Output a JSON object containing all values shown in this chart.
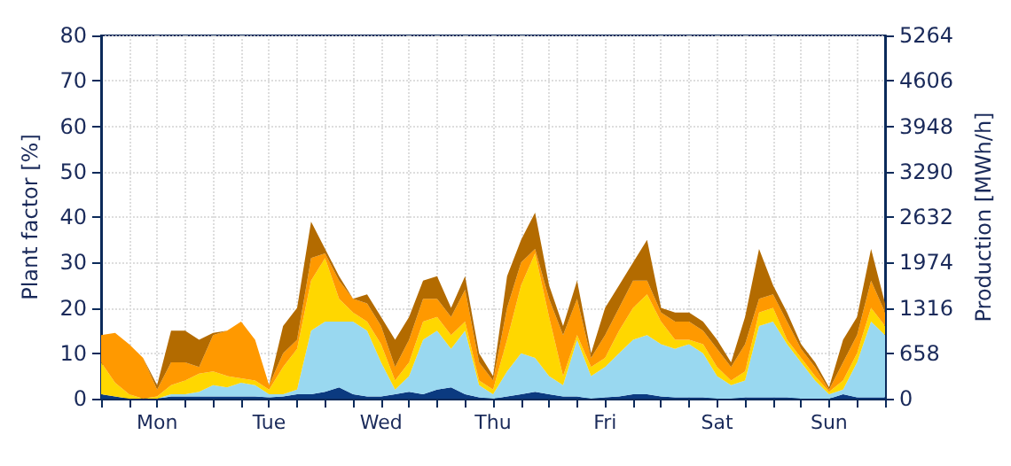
{
  "chart_data": {
    "type": "area",
    "stacked": true,
    "ylabel": "Plant factor [%]",
    "y2label": "Production [MWh/h]",
    "categories": [
      null,
      null,
      null,
      null,
      "Mon",
      null,
      null,
      null,
      null,
      null,
      null,
      null,
      "Tue",
      null,
      null,
      null,
      null,
      null,
      null,
      null,
      "Wed",
      null,
      null,
      null,
      null,
      null,
      null,
      null,
      "Thu",
      null,
      null,
      null,
      null,
      null,
      null,
      null,
      "Fri",
      null,
      null,
      null,
      null,
      null,
      null,
      null,
      "Sat",
      null,
      null,
      null,
      null,
      null,
      null,
      null,
      "Sun",
      null,
      null,
      null,
      null
    ],
    "series": [
      {
        "color": "#0b3a80",
        "values": [
          1,
          0.5,
          0,
          0,
          0,
          0.5,
          0.5,
          0.5,
          0.5,
          0.5,
          0.5,
          0.5,
          0.3,
          0.5,
          1,
          1,
          1.5,
          2.5,
          1,
          0.5,
          0.5,
          1,
          1.5,
          1,
          2,
          2.5,
          1,
          0.3,
          0,
          0.5,
          1,
          1.5,
          1,
          0.5,
          0.5,
          0,
          0.3,
          0.5,
          1,
          1,
          0.5,
          0.3,
          0.3,
          0.3,
          0,
          0,
          0.3,
          0.3,
          0.3,
          0.3,
          0,
          0,
          0,
          1,
          0.3,
          0.3,
          0.3
        ]
      },
      {
        "color": "#99d8f0",
        "values": [
          0,
          0,
          0,
          0,
          0,
          0.5,
          0.5,
          1,
          2.5,
          2,
          3,
          2.5,
          0.7,
          0.5,
          1,
          14,
          15.5,
          14.5,
          16,
          14.5,
          7.5,
          1,
          3.5,
          12,
          13,
          8.5,
          14,
          2.7,
          1,
          5.5,
          9,
          7.5,
          4,
          2.5,
          12.5,
          5,
          6.7,
          9.5,
          12,
          13,
          11.5,
          10.7,
          11.7,
          9.7,
          5,
          3,
          3.7,
          15.7,
          16.7,
          11.7,
          8,
          4,
          1,
          1,
          7.7,
          16.7,
          13.7
        ]
      },
      {
        "color": "#ffd700",
        "values": [
          7,
          3,
          1,
          0,
          0.5,
          2,
          3,
          4,
          3,
          2.5,
          1,
          1,
          1,
          6,
          9,
          11,
          14,
          5,
          2,
          2,
          4,
          2,
          3,
          4,
          3,
          3,
          2,
          1,
          1,
          7,
          15,
          23,
          13,
          2,
          1,
          2,
          2,
          5,
          7,
          9,
          5,
          2,
          1,
          2,
          2,
          1,
          2,
          3,
          3,
          1,
          1,
          1,
          0.5,
          2,
          2,
          3,
          2
        ]
      },
      {
        "color": "#ff9900",
        "values": [
          6,
          11,
          11,
          9,
          1.5,
          5,
          4,
          1.5,
          8,
          10,
          12.5,
          9,
          1,
          3,
          2,
          5,
          1,
          4,
          3,
          4,
          4,
          3,
          5,
          5,
          4,
          4,
          7,
          4,
          2,
          7,
          5,
          1,
          4,
          9,
          8,
          2,
          5,
          5,
          6,
          3,
          2,
          4,
          4,
          3,
          4,
          3,
          6,
          3,
          3,
          4,
          2,
          2,
          0.5,
          4,
          4,
          6,
          3
        ]
      },
      {
        "color": "#b36b00",
        "values": [
          0,
          0,
          0,
          0,
          1,
          7,
          7,
          6,
          0.5,
          0,
          0,
          0,
          0,
          6,
          7,
          8,
          1,
          1,
          0,
          2,
          2,
          6,
          5,
          4,
          5,
          2,
          3,
          2,
          1,
          7,
          5,
          8,
          3,
          2,
          4,
          1,
          6,
          5,
          4,
          9,
          1,
          2,
          2,
          2,
          2,
          1,
          6,
          11,
          2,
          2,
          1,
          1,
          0.5,
          5,
          4,
          7,
          2
        ]
      }
    ],
    "ylim": [
      0,
      80
    ],
    "yticks": [
      0,
      10,
      20,
      30,
      40,
      50,
      60,
      70,
      80
    ],
    "y2lim": [
      0,
      5264
    ],
    "y2ticks": [
      0,
      658,
      1316,
      1974,
      2632,
      3290,
      3948,
      4606,
      5264
    ],
    "grid": true
  }
}
